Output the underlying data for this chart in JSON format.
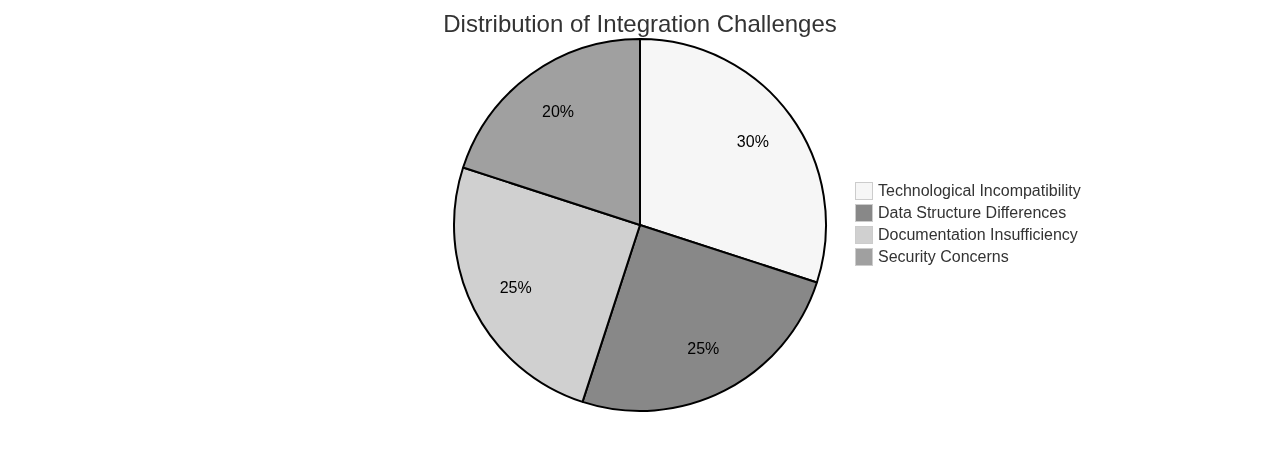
{
  "chart_data": {
    "type": "pie",
    "title": "Distribution of Integration Challenges",
    "categories": [
      "Technological Incompatibility",
      "Data Structure Differences",
      "Documentation Insufficiency",
      "Security Concerns"
    ],
    "values": [
      30,
      25,
      25,
      20
    ],
    "colors": [
      "#f6f6f6",
      "#888888",
      "#d0d0d0",
      "#a0a0a0"
    ],
    "value_labels": [
      "30%",
      "25%",
      "25%",
      "20%"
    ],
    "legend": "right"
  }
}
